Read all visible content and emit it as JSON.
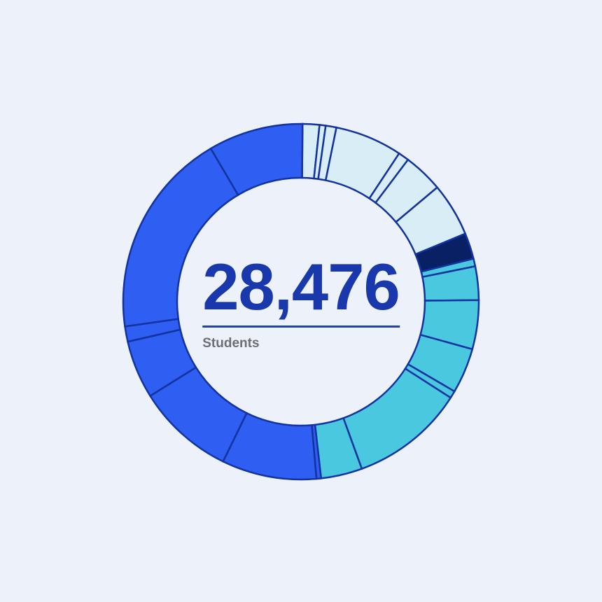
{
  "page": {
    "background_color": "#edf1f9"
  },
  "center": {
    "total_label": "28,476",
    "unit_label": "Students",
    "total_color": "#1838ab",
    "divider_color": "#1f42a8",
    "unit_color": "#6b6e73"
  },
  "chart_data": {
    "type": "pie",
    "subtype": "donut",
    "title": "",
    "center_label": "28,476",
    "center_sublabel": "Students",
    "total_students": 28476,
    "legend": "none",
    "stroke_color": "#1233a0",
    "palette": {
      "light_blue": "#d9edf6",
      "navy": "#0a2064",
      "teal": "#49c8e0",
      "royal_blue": "#2f5ef2"
    },
    "angle_convention": "degrees clockwise from 12 o'clock",
    "segments": [
      {
        "color_group": "light_blue",
        "start_deg": 0.5,
        "end_deg": 6.0,
        "value": 435
      },
      {
        "color_group": "light_blue",
        "start_deg": 6.0,
        "end_deg": 8.0,
        "value": 158
      },
      {
        "color_group": "light_blue",
        "start_deg": 8.0,
        "end_deg": 11.5,
        "value": 277
      },
      {
        "color_group": "light_blue",
        "start_deg": 11.5,
        "end_deg": 33.5,
        "value": 1740
      },
      {
        "color_group": "light_blue",
        "start_deg": 33.5,
        "end_deg": 37.0,
        "value": 277
      },
      {
        "color_group": "light_blue",
        "start_deg": 37.0,
        "end_deg": 50.0,
        "value": 1028
      },
      {
        "color_group": "light_blue",
        "start_deg": 50.0,
        "end_deg": 67.5,
        "value": 1384
      },
      {
        "color_group": "navy",
        "start_deg": 67.5,
        "end_deg": 76.0,
        "value": 672
      },
      {
        "color_group": "teal",
        "start_deg": 76.0,
        "end_deg": 78.5,
        "value": 198
      },
      {
        "color_group": "teal",
        "start_deg": 78.5,
        "end_deg": 89.5,
        "value": 910
      },
      {
        "color_group": "teal",
        "start_deg": 89.5,
        "end_deg": 105.5,
        "value": 1266
      },
      {
        "color_group": "teal",
        "start_deg": 105.5,
        "end_deg": 120.3,
        "value": 1171
      },
      {
        "color_group": "teal",
        "start_deg": 120.3,
        "end_deg": 122.7,
        "value": 190
      },
      {
        "color_group": "teal",
        "start_deg": 122.7,
        "end_deg": 160.0,
        "value": 2951
      },
      {
        "color_group": "teal",
        "start_deg": 160.0,
        "end_deg": 173.5,
        "value": 1068
      },
      {
        "color_group": "royal_blue",
        "start_deg": 173.5,
        "end_deg": 175.0,
        "value": 119
      },
      {
        "color_group": "royal_blue",
        "start_deg": 175.0,
        "end_deg": 206.0,
        "value": 2452
      },
      {
        "color_group": "royal_blue",
        "start_deg": 206.0,
        "end_deg": 238.0,
        "value": 2531
      },
      {
        "color_group": "royal_blue",
        "start_deg": 238.0,
        "end_deg": 257.0,
        "value": 1503
      },
      {
        "color_group": "royal_blue",
        "start_deg": 257.0,
        "end_deg": 262.0,
        "value": 396
      },
      {
        "color_group": "royal_blue",
        "start_deg": 262.0,
        "end_deg": 329.5,
        "value": 5340
      },
      {
        "color_group": "royal_blue",
        "start_deg": 329.5,
        "end_deg": 360.5,
        "value": 2410
      }
    ]
  }
}
